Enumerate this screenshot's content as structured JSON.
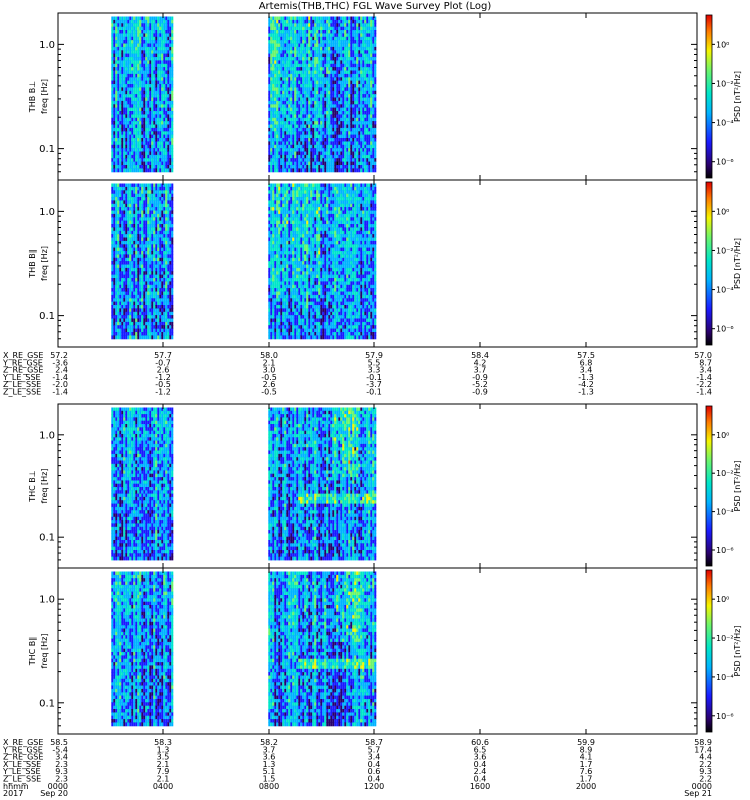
{
  "chart_data": {
    "type": "heatmap",
    "title": "Artemis(THB,THC) FGL Wave Survey Plot (Log)",
    "x_time_ticks": [
      "0000",
      "0400",
      "0800",
      "1200",
      "1600",
      "2000",
      "0000"
    ],
    "x_date_first": "Sep 20",
    "x_date_last": "Sep 21",
    "time_label": "hhmm",
    "year_label": "2017",
    "colorbar_label": "PSD [nT²/Hz]",
    "colorbar_ticks": [
      "10⁰",
      "10⁻²",
      "10⁻⁴",
      "10⁻⁶"
    ],
    "y_ticks": [
      "1.0",
      "0.1"
    ],
    "y_scale": "log",
    "ylim_hz": [
      0.05,
      2.0
    ],
    "panels": [
      {
        "ylabel1": "THB B⊥",
        "ylabel2": "freq [Hz]",
        "data_segments_hours": [
          [
            2.0,
            4.3
          ],
          [
            7.9,
            11.9
          ]
        ],
        "bright_bands_hz": []
      },
      {
        "ylabel1": "THB B∥",
        "ylabel2": "freq [Hz]",
        "data_segments_hours": [
          [
            2.0,
            4.3
          ],
          [
            7.9,
            11.9
          ]
        ],
        "bright_bands_hz": []
      },
      {
        "ylabel1": "THC B⊥",
        "ylabel2": "freq [Hz]",
        "data_segments_hours": [
          [
            2.0,
            4.3
          ],
          [
            7.9,
            11.9
          ]
        ],
        "bright_bands_hz": [
          0.25
        ]
      },
      {
        "ylabel1": "THC B∥",
        "ylabel2": "freq [Hz]",
        "data_segments_hours": [
          [
            2.0,
            4.3
          ],
          [
            7.9,
            11.9
          ]
        ],
        "bright_bands_hz": [
          0.25
        ]
      }
    ],
    "ephemeris": [
      {
        "labels": [
          "X_RE_GSE",
          "Y_RE_GSE",
          "Z_RE_GSE",
          "Y_LE_SSE",
          "Z_LE_SSE",
          "Z_LE_SSE"
        ],
        "columns": [
          [
            "57.2",
            "-3.6",
            "2.4",
            "-1.4",
            "-2.0",
            "-1.4"
          ],
          [
            "57.7",
            "-0.7",
            "2.6",
            "-1.2",
            "-0.5",
            "-1.2"
          ],
          [
            "58.0",
            "2.1",
            "3.0",
            "-0.5",
            "2.6",
            "-0.5"
          ],
          [
            "57.9",
            "5.5",
            "3.3",
            "-0.1",
            "-3.7",
            "-0.1"
          ],
          [
            "58.4",
            "4.2",
            "3.7",
            "-0.9",
            "-5.2",
            "-0.9"
          ],
          [
            "57.5",
            "6.8",
            "3.4",
            "-1.3",
            "-4.2",
            "-1.3"
          ],
          [
            "57.0",
            "8.7",
            "3.4",
            "-1.4",
            "-2.2",
            "-1.4"
          ]
        ]
      },
      {
        "labels": [
          "X_RE_GSE",
          "Y_RE_GSE",
          "Z_RE_GSE",
          "X_LE_SSE",
          "Y_LE_SSE",
          "Z_LE_SSE"
        ],
        "columns": [
          [
            "58.5",
            "-5.4",
            "3.4",
            "2.3",
            "9.3",
            "2.3"
          ],
          [
            "58.3",
            "1.3",
            "3.5",
            "2.1",
            "7.9",
            "2.1"
          ],
          [
            "58.2",
            "3.7",
            "3.6",
            "1.3",
            "5.1",
            "1.5"
          ],
          [
            "58.7",
            "5.7",
            "3.4",
            "0.4",
            "0.6",
            "0.4"
          ],
          [
            "60.6",
            "6.5",
            "3.6",
            "0.4",
            "2.4",
            "0.4"
          ],
          [
            "59.9",
            "8.9",
            "4.1",
            "1.7",
            "7.6",
            "1.7"
          ],
          [
            "58.9",
            "17.4",
            "4.4",
            "2.2",
            "9.3",
            "2.2"
          ]
        ]
      }
    ]
  },
  "colors": {
    "colormap": [
      "#000000",
      "#2a006a",
      "#1a1aff",
      "#00b4ff",
      "#00e6c8",
      "#6cf56c",
      "#f5f500",
      "#ff7a00",
      "#e00000"
    ]
  }
}
